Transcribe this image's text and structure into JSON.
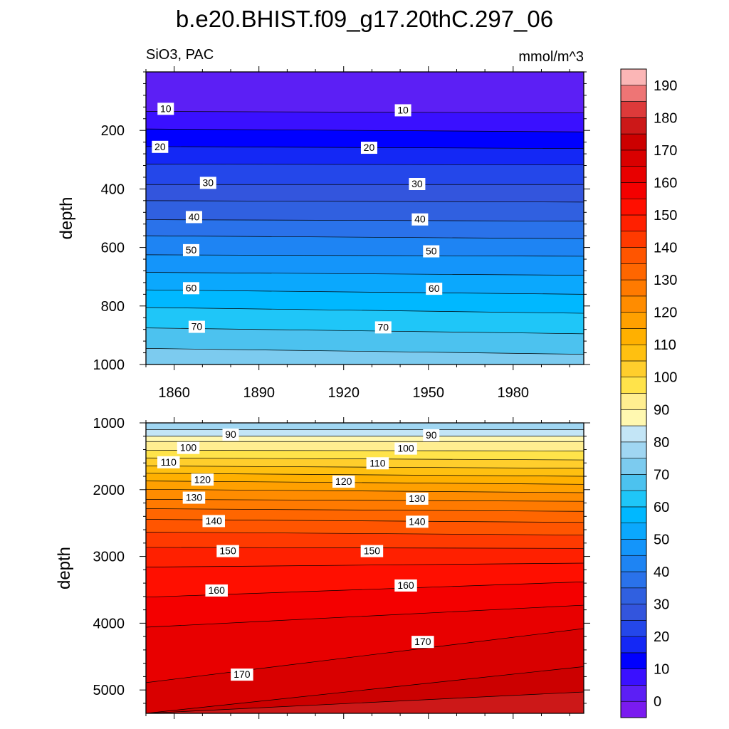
{
  "title": "b.e20.BHIST.f09_g17.20thC.297_06",
  "subtitle_left": "SiO3, PAC",
  "subtitle_right": "mmol/m^3",
  "chart_data": [
    {
      "type": "contour",
      "name": "upper-panel",
      "xlabel": "",
      "ylabel": "depth",
      "xlim": [
        1850,
        2005
      ],
      "ylim": [
        1000,
        0
      ],
      "xticks": [
        1860,
        1890,
        1920,
        1950,
        1980
      ],
      "yticks": [
        200,
        400,
        600,
        800,
        1000
      ],
      "contour_levels": [
        10,
        15,
        20,
        25,
        30,
        35,
        40,
        45,
        50,
        55,
        60,
        65,
        70,
        75
      ],
      "contour_depths": [
        {
          "level": 10,
          "depth_start": 135,
          "depth_end": 140
        },
        {
          "level": 15,
          "depth_start": 195,
          "depth_end": 205
        },
        {
          "level": 20,
          "depth_start": 255,
          "depth_end": 262
        },
        {
          "level": 25,
          "depth_start": 315,
          "depth_end": 318
        },
        {
          "level": 30,
          "depth_start": 385,
          "depth_end": 385
        },
        {
          "level": 35,
          "depth_start": 440,
          "depth_end": 445
        },
        {
          "level": 40,
          "depth_start": 505,
          "depth_end": 510
        },
        {
          "level": 45,
          "depth_start": 560,
          "depth_end": 570
        },
        {
          "level": 50,
          "depth_start": 625,
          "depth_end": 630
        },
        {
          "level": 55,
          "depth_start": 685,
          "depth_end": 695
        },
        {
          "level": 60,
          "depth_start": 745,
          "depth_end": 760
        },
        {
          "level": 65,
          "depth_start": 805,
          "depth_end": 825
        },
        {
          "level": 70,
          "depth_start": 875,
          "depth_end": 895
        },
        {
          "level": 75,
          "depth_start": 945,
          "depth_end": 965
        }
      ],
      "labels": [
        {
          "text": "10",
          "year": 1857,
          "depth": 125
        },
        {
          "text": "10",
          "year": 1941,
          "depth": 130
        },
        {
          "text": "20",
          "year": 1855,
          "depth": 255
        },
        {
          "text": "20",
          "year": 1929,
          "depth": 258
        },
        {
          "text": "30",
          "year": 1872,
          "depth": 378
        },
        {
          "text": "30",
          "year": 1946,
          "depth": 382
        },
        {
          "text": "40",
          "year": 1867,
          "depth": 495
        },
        {
          "text": "40",
          "year": 1947,
          "depth": 503
        },
        {
          "text": "50",
          "year": 1866,
          "depth": 608
        },
        {
          "text": "50",
          "year": 1951,
          "depth": 612
        },
        {
          "text": "60",
          "year": 1866,
          "depth": 738
        },
        {
          "text": "60",
          "year": 1952,
          "depth": 740
        },
        {
          "text": "70",
          "year": 1868,
          "depth": 870
        },
        {
          "text": "70",
          "year": 1934,
          "depth": 872
        }
      ]
    },
    {
      "type": "contour",
      "name": "lower-panel",
      "xlabel": "",
      "ylabel": "depth",
      "xlim": [
        1850,
        2005
      ],
      "ylim": [
        5350,
        1000
      ],
      "xticks": [
        1860,
        1890,
        1920,
        1950,
        1980
      ],
      "yticks": [
        1000,
        2000,
        3000,
        4000,
        5000
      ],
      "contour_levels": [
        85,
        90,
        95,
        100,
        105,
        110,
        115,
        120,
        125,
        130,
        135,
        140,
        145,
        150,
        155,
        160,
        165,
        170,
        175,
        180
      ],
      "contour_depths": [
        {
          "level": 85,
          "depth_start": 1100,
          "depth_end": 1100
        },
        {
          "level": 90,
          "depth_start": 1200,
          "depth_end": 1200
        },
        {
          "level": 95,
          "depth_start": 1280,
          "depth_end": 1280
        },
        {
          "level": 100,
          "depth_start": 1410,
          "depth_end": 1420
        },
        {
          "level": 105,
          "depth_start": 1525,
          "depth_end": 1555
        },
        {
          "level": 110,
          "depth_start": 1645,
          "depth_end": 1680
        },
        {
          "level": 115,
          "depth_start": 1755,
          "depth_end": 1800
        },
        {
          "level": 120,
          "depth_start": 1870,
          "depth_end": 1920
        },
        {
          "level": 125,
          "depth_start": 1995,
          "depth_end": 2045
        },
        {
          "level": 130,
          "depth_start": 2145,
          "depth_end": 2175
        },
        {
          "level": 135,
          "depth_start": 2285,
          "depth_end": 2325
        },
        {
          "level": 140,
          "depth_start": 2445,
          "depth_end": 2490
        },
        {
          "level": 145,
          "depth_start": 2635,
          "depth_end": 2680
        },
        {
          "level": 150,
          "depth_start": 2865,
          "depth_end": 2880
        },
        {
          "level": 155,
          "depth_start": 3160,
          "depth_end": 3100
        },
        {
          "level": 160,
          "depth_start": 3610,
          "depth_end": 3380
        },
        {
          "level": 165,
          "depth_start": 4060,
          "depth_end": 3730
        },
        {
          "level": 170,
          "depth_start": 4890,
          "depth_end": 4080
        },
        {
          "level": 175,
          "depth_start": 5350,
          "depth_end": 4650
        },
        {
          "level": 180,
          "depth_start": 5350,
          "depth_end": 5030
        }
      ],
      "labels": [
        {
          "text": "90",
          "year": 1880,
          "depth": 1170
        },
        {
          "text": "90",
          "year": 1951,
          "depth": 1180
        },
        {
          "text": "100",
          "year": 1865,
          "depth": 1370
        },
        {
          "text": "100",
          "year": 1942,
          "depth": 1380
        },
        {
          "text": "110",
          "year": 1858,
          "depth": 1585
        },
        {
          "text": "110",
          "year": 1932,
          "depth": 1600
        },
        {
          "text": "120",
          "year": 1870,
          "depth": 1845
        },
        {
          "text": "120",
          "year": 1920,
          "depth": 1875
        },
        {
          "text": "130",
          "year": 1867,
          "depth": 2115
        },
        {
          "text": "130",
          "year": 1946,
          "depth": 2130
        },
        {
          "text": "140",
          "year": 1874,
          "depth": 2465
        },
        {
          "text": "140",
          "year": 1946,
          "depth": 2475
        },
        {
          "text": "150",
          "year": 1879,
          "depth": 2915
        },
        {
          "text": "150",
          "year": 1930,
          "depth": 2915
        },
        {
          "text": "160",
          "year": 1875,
          "depth": 3505
        },
        {
          "text": "160",
          "year": 1942,
          "depth": 3430
        },
        {
          "text": "170",
          "year": 1884,
          "depth": 4765
        },
        {
          "text": "170",
          "year": 1948,
          "depth": 4275
        }
      ]
    }
  ],
  "colorbar": {
    "labels": [
      "0",
      "10",
      "20",
      "30",
      "40",
      "50",
      "60",
      "70",
      "80",
      "90",
      "100",
      "110",
      "120",
      "130",
      "140",
      "150",
      "160",
      "170",
      "180",
      "190"
    ],
    "colors": [
      "#7a1bf0",
      "#5c1ff5",
      "#3a10ff",
      "#0000ff",
      "#1428f5",
      "#2447ea",
      "#3355dd",
      "#3060e0",
      "#2a72ea",
      "#1e84f3",
      "#1495fa",
      "#0ba8fd",
      "#00b8ff",
      "#1fc6f8",
      "#4cc2ef",
      "#7ccbef",
      "#a0d6f2",
      "#c3e5f6",
      "#fff8b0",
      "#ffee90",
      "#ffe34a",
      "#ffce2c",
      "#ffc010",
      "#ffb000",
      "#ffa000",
      "#ff8c00",
      "#ff7a00",
      "#ff6600",
      "#ff5500",
      "#ff3a00",
      "#ff2000",
      "#ff0f00",
      "#f40000",
      "#e80000",
      "#d90000",
      "#cc0000",
      "#cc1818",
      "#dd3a3a",
      "#ee7575",
      "#fbb6b6"
    ]
  }
}
